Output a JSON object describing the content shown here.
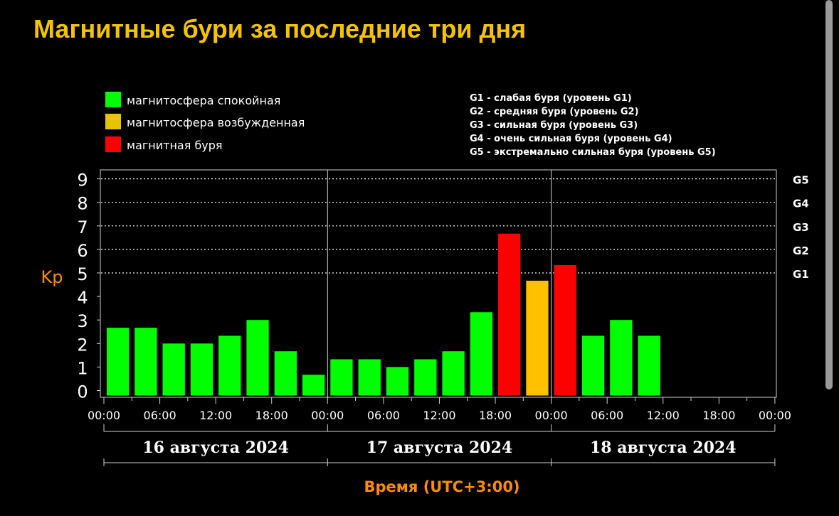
{
  "title": "Магнитные бури за последние три дня",
  "legend": [
    {
      "label": "магнитосфера спокойная",
      "color": "#00ff00"
    },
    {
      "label": "магнитосфера возбужденная",
      "color": "#e8c400"
    },
    {
      "label": "магнитная буря",
      "color": "#ff0000"
    }
  ],
  "g_legend": [
    "G1 - слабая буря (уровень G1)",
    "G2 - средняя буря (уровень G2)",
    "G3 - сильная буря (уровень G3)",
    "G4 - очень сильная буря (уровень G4)",
    "G5 - экстремально сильная буря (уровень G5)"
  ],
  "colors": {
    "calm": "#00ff00",
    "excited": "#ffc000",
    "storm": "#ff0000",
    "axis_label": "#ff8c00",
    "title": "#f5c400"
  },
  "chart_data": {
    "type": "bar",
    "ylabel": "Kp",
    "xlabel": "Время (UTC+3:00)",
    "ylim": [
      0,
      9
    ],
    "y_ticks": [
      "0",
      "1",
      "2",
      "3",
      "4",
      "5",
      "6",
      "7",
      "8",
      "9"
    ],
    "g_levels": [
      {
        "label": "G1",
        "kp": 5
      },
      {
        "label": "G2",
        "kp": 6
      },
      {
        "label": "G3",
        "kp": 7
      },
      {
        "label": "G4",
        "kp": 8
      },
      {
        "label": "G5",
        "kp": 9
      }
    ],
    "x_ticks": [
      "00:00",
      "06:00",
      "12:00",
      "18:00",
      "00:00",
      "06:00",
      "12:00",
      "18:00",
      "00:00",
      "06:00",
      "12:00",
      "18:00",
      "00:00"
    ],
    "days": [
      "16 августа 2024",
      "17 августа 2024",
      "18 августа 2024"
    ],
    "bars": [
      {
        "day": "16 августа 2024",
        "start": "00:00",
        "kp": 2.67,
        "status": "calm"
      },
      {
        "day": "16 августа 2024",
        "start": "03:00",
        "kp": 2.67,
        "status": "calm"
      },
      {
        "day": "16 августа 2024",
        "start": "06:00",
        "kp": 2.0,
        "status": "calm"
      },
      {
        "day": "16 августа 2024",
        "start": "09:00",
        "kp": 2.0,
        "status": "calm"
      },
      {
        "day": "16 августа 2024",
        "start": "12:00",
        "kp": 2.33,
        "status": "calm"
      },
      {
        "day": "16 августа 2024",
        "start": "15:00",
        "kp": 3.0,
        "status": "calm"
      },
      {
        "day": "16 августа 2024",
        "start": "18:00",
        "kp": 1.67,
        "status": "calm"
      },
      {
        "day": "16 августа 2024",
        "start": "21:00",
        "kp": 0.67,
        "status": "calm"
      },
      {
        "day": "17 августа 2024",
        "start": "00:00",
        "kp": 1.33,
        "status": "calm"
      },
      {
        "day": "17 августа 2024",
        "start": "03:00",
        "kp": 1.33,
        "status": "calm"
      },
      {
        "day": "17 августа 2024",
        "start": "06:00",
        "kp": 1.0,
        "status": "calm"
      },
      {
        "day": "17 августа 2024",
        "start": "09:00",
        "kp": 1.33,
        "status": "calm"
      },
      {
        "day": "17 августа 2024",
        "start": "12:00",
        "kp": 1.67,
        "status": "calm"
      },
      {
        "day": "17 августа 2024",
        "start": "15:00",
        "kp": 3.33,
        "status": "calm"
      },
      {
        "day": "17 августа 2024",
        "start": "18:00",
        "kp": 6.67,
        "status": "storm"
      },
      {
        "day": "17 августа 2024",
        "start": "21:00",
        "kp": 4.67,
        "status": "excited"
      },
      {
        "day": "18 августа 2024",
        "start": "00:00",
        "kp": 5.33,
        "status": "storm"
      },
      {
        "day": "18 августа 2024",
        "start": "03:00",
        "kp": 2.33,
        "status": "calm"
      },
      {
        "day": "18 августа 2024",
        "start": "06:00",
        "kp": 3.0,
        "status": "calm"
      },
      {
        "day": "18 августа 2024",
        "start": "09:00",
        "kp": 2.33,
        "status": "calm"
      }
    ]
  }
}
